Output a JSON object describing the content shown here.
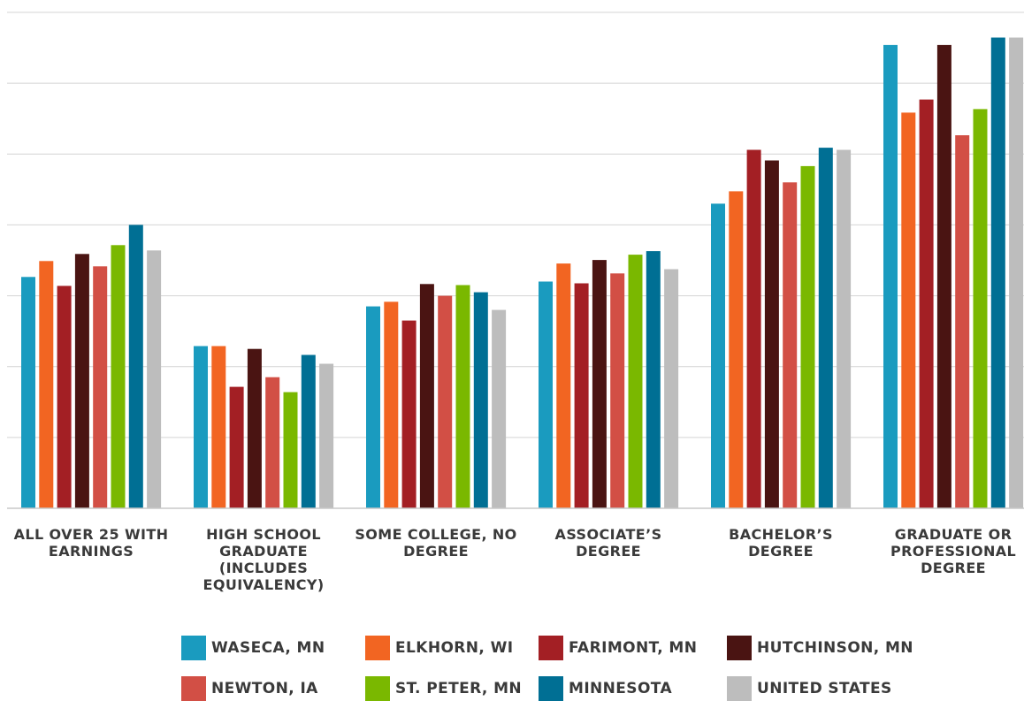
{
  "chart_data": {
    "type": "bar",
    "title": "",
    "xlabel": "",
    "ylabel": "",
    "ylim": [
      0,
      140000
    ],
    "grid": true,
    "legend_position": "bottom",
    "categories": [
      "ALL OVER 25 WITH EARNINGS",
      "HIGH SCHOOL GRADUATE (INCLUDES EQUIVALENCY)",
      "SOME COLLEGE, NO DEGREE",
      "ASSOCIATE’S DEGREE",
      "BACHELOR’S DEGREE",
      "GRADUATE OR PROFESSIONAL DEGREE"
    ],
    "series": [
      {
        "name": "WASECA, MN",
        "color": "#1a9bbf",
        "values": [
          65300,
          45800,
          57000,
          64000,
          86000,
          130800
        ]
      },
      {
        "name": "ELKHORN, WI",
        "color": "#f26522",
        "values": [
          69800,
          45800,
          58300,
          69100,
          89500,
          111700
        ]
      },
      {
        "name": "FARIMONT, MN",
        "color": "#a31f24",
        "values": [
          62800,
          34300,
          53000,
          63500,
          101200,
          115400
        ]
      },
      {
        "name": "HUTCHINSON, MN",
        "color": "#4a1412",
        "values": [
          71800,
          45000,
          63300,
          70100,
          98200,
          130800
        ]
      },
      {
        "name": "NEWTON, IA",
        "color": "#d24f45",
        "values": [
          68300,
          37000,
          60000,
          66300,
          92000,
          105300
        ]
      },
      {
        "name": "ST. PETER, MN",
        "color": "#7ab800",
        "values": [
          74300,
          32800,
          63000,
          71600,
          96600,
          112700
        ]
      },
      {
        "name": "MINNESOTA",
        "color": "#006f94",
        "values": [
          80000,
          43300,
          61000,
          72600,
          101800,
          132900
        ]
      },
      {
        "name": "UNITED STATES",
        "color": "#bdbdbd",
        "values": [
          72800,
          40800,
          56000,
          67500,
          101200,
          132900
        ]
      }
    ]
  }
}
